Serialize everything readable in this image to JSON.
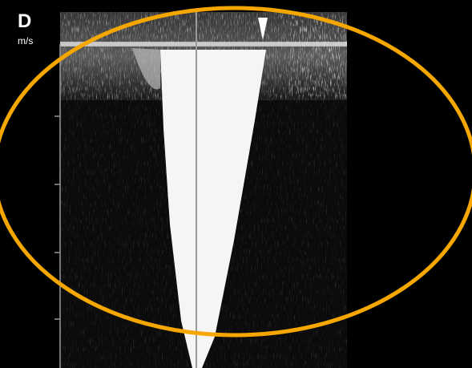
{
  "panel_label": "D",
  "unit": "m/s"
}
